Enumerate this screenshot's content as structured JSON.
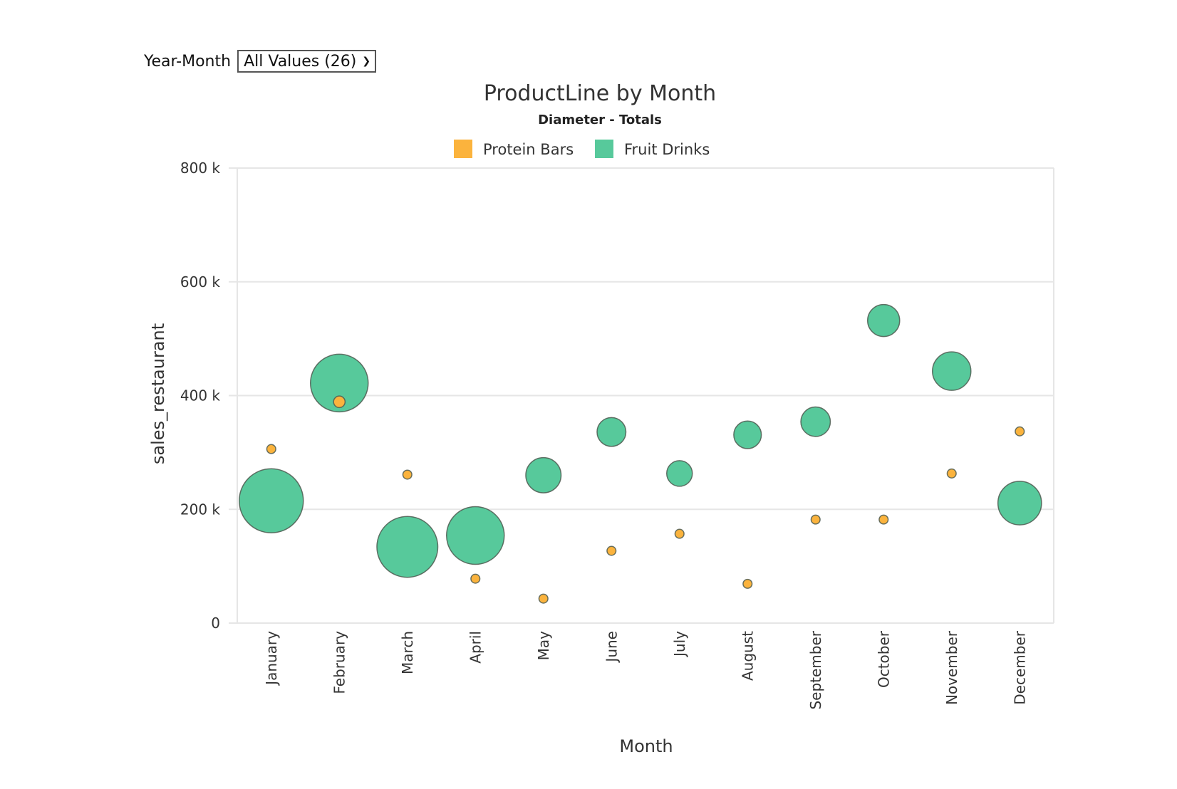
{
  "filter": {
    "label": "Year-Month",
    "selected": "All Values (26)"
  },
  "chart_data": {
    "type": "scatter",
    "title": "ProductLine by Month",
    "subtitle": "Diameter - Totals",
    "xlabel": "Month",
    "ylabel": "sales_restaurant",
    "categories": [
      "January",
      "February",
      "March",
      "April",
      "May",
      "June",
      "July",
      "August",
      "September",
      "October",
      "November",
      "December"
    ],
    "ylim": [
      0,
      800000
    ],
    "yticks": [
      {
        "value": 0,
        "label": "0"
      },
      {
        "value": 200000,
        "label": "200 k"
      },
      {
        "value": 400000,
        "label": "400 k"
      },
      {
        "value": 600000,
        "label": "600 k"
      },
      {
        "value": 800000,
        "label": "800 k"
      }
    ],
    "grid": true,
    "legend_position": "top",
    "series": [
      {
        "name": "Fruit Drinks",
        "color": "#57c99b",
        "values": [
          215000,
          422000,
          134000,
          154000,
          260000,
          336000,
          263000,
          331000,
          354000,
          532000,
          443000,
          211000
        ],
        "sizes": [
          1.0,
          0.9,
          0.95,
          0.9,
          0.55,
          0.45,
          0.4,
          0.43,
          0.46,
          0.5,
          0.6,
          0.68
        ]
      },
      {
        "name": "Protein Bars",
        "color": "#fbb33d",
        "values": [
          306000,
          389000,
          261000,
          78000,
          43000,
          127000,
          157000,
          69000,
          182000,
          182000,
          263000,
          337000
        ],
        "sizes": [
          0.14,
          0.18,
          0.14,
          0.14,
          0.14,
          0.14,
          0.14,
          0.14,
          0.14,
          0.14,
          0.14,
          0.14
        ]
      }
    ],
    "legend_order": [
      "Protein Bars",
      "Fruit Drinks"
    ]
  }
}
